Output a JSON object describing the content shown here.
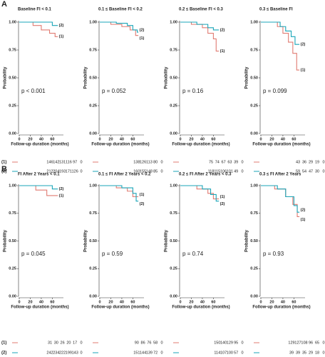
{
  "panel_labels": [
    "A",
    "B"
  ],
  "chart_data": [
    {
      "type": "step",
      "title": "Baseline FI < 0.1",
      "annotation": "p < 0.001",
      "ylabel": "Probability",
      "xlabel": "Follow-up duration (months)",
      "xlim": [
        0,
        75
      ],
      "ylim": [
        0,
        1
      ],
      "xticks": [
        0,
        20,
        40,
        60
      ],
      "yticks": [
        {
          "value": 0,
          "label": "0.00"
        },
        {
          "value": 0.25,
          "label": "0.25"
        },
        {
          "value": 0.5,
          "label": "0.50"
        },
        {
          "value": 0.75,
          "label": "0.75"
        },
        {
          "value": 1,
          "label": "1.00"
        }
      ],
      "series": [
        {
          "name": "(1)",
          "color": "#e07b72",
          "x": [
            0,
            25,
            25,
            40,
            40,
            55,
            55,
            65,
            65,
            70
          ],
          "values": [
            1,
            1,
            0.97,
            0.97,
            0.93,
            0.93,
            0.9,
            0.9,
            0.87,
            0.87
          ],
          "at_risk": [
            146,
            142,
            131,
            116,
            97,
            0
          ]
        },
        {
          "name": "(2)",
          "color": "#1aa5b8",
          "x": [
            0,
            60,
            60,
            70
          ],
          "values": [
            1,
            1,
            0.97,
            0.97
          ],
          "at_risk": [
            212,
            204,
            193,
            171,
            126,
            0
          ]
        }
      ]
    },
    {
      "type": "step",
      "title": "0.1 ≤ Baseline FI < 0.2",
      "annotation": "p = 0.052",
      "ylabel": "Probability",
      "xlabel": "Follow-up duration (months)",
      "xlim": [
        0,
        75
      ],
      "ylim": [
        0,
        1
      ],
      "xticks": [
        0,
        20,
        40,
        60
      ],
      "yticks": [
        {
          "value": 0,
          "label": "0.00"
        },
        {
          "value": 0.25,
          "label": "0.25"
        },
        {
          "value": 0.5,
          "label": "0.50"
        },
        {
          "value": 0.75,
          "label": "0.75"
        },
        {
          "value": 1,
          "label": "1.00"
        }
      ],
      "series": [
        {
          "name": "(1)",
          "color": "#e07b72",
          "x": [
            0,
            20,
            20,
            40,
            40,
            55,
            55,
            65,
            65,
            70
          ],
          "values": [
            1,
            1,
            0.98,
            0.98,
            0.96,
            0.96,
            0.93,
            0.93,
            0.88,
            0.88
          ],
          "at_risk": [
            138,
            126,
            113,
            80,
            0
          ]
        },
        {
          "name": "(2)",
          "color": "#1aa5b8",
          "x": [
            0,
            30,
            30,
            50,
            50,
            60,
            60,
            68,
            68,
            70
          ],
          "values": [
            1,
            1,
            0.99,
            0.99,
            0.97,
            0.97,
            0.93,
            0.93,
            0.91,
            0.91
          ],
          "at_risk": [
            160,
            155,
            148,
            85,
            0
          ]
        }
      ]
    },
    {
      "type": "step",
      "title": "0.2 ≤ Baseline FI < 0.3",
      "annotation": "p = 0.16",
      "ylabel": "Probability",
      "xlabel": "Follow-up duration (months)",
      "xlim": [
        0,
        75
      ],
      "ylim": [
        0,
        1
      ],
      "xticks": [
        0,
        20,
        40,
        60
      ],
      "yticks": [
        {
          "value": 0,
          "label": "0.00"
        },
        {
          "value": 0.25,
          "label": "0.25"
        },
        {
          "value": 0.5,
          "label": "0.50"
        },
        {
          "value": 0.75,
          "label": "0.75"
        },
        {
          "value": 1,
          "label": "1.00"
        }
      ],
      "series": [
        {
          "name": "(1)",
          "color": "#e07b72",
          "x": [
            0,
            20,
            20,
            40,
            40,
            50,
            50,
            60,
            60,
            65,
            65,
            70
          ],
          "values": [
            1,
            1,
            0.98,
            0.98,
            0.95,
            0.95,
            0.9,
            0.9,
            0.85,
            0.85,
            0.74,
            0.74
          ],
          "at_risk": [
            75,
            74,
            67,
            63,
            39,
            0
          ]
        },
        {
          "name": "(2)",
          "color": "#1aa5b8",
          "x": [
            0,
            30,
            30,
            50,
            50,
            60,
            60,
            70
          ],
          "values": [
            1,
            1,
            0.98,
            0.98,
            0.95,
            0.95,
            0.93,
            0.93
          ],
          "at_risk": [
            118,
            115,
            106,
            101,
            49,
            0
          ]
        }
      ]
    },
    {
      "type": "step",
      "title": "0.3 ≤ Baseline FI",
      "annotation": "p = 0.099",
      "ylabel": "Probability",
      "xlabel": "Follow-up duration (months)",
      "xlim": [
        0,
        75
      ],
      "ylim": [
        0,
        1
      ],
      "xticks": [
        0,
        20,
        40,
        60
      ],
      "yticks": [
        {
          "value": 0,
          "label": "0.00"
        },
        {
          "value": 0.25,
          "label": "0.25"
        },
        {
          "value": 0.5,
          "label": "0.50"
        },
        {
          "value": 0.75,
          "label": "0.75"
        },
        {
          "value": 1,
          "label": "1.00"
        }
      ],
      "series": [
        {
          "name": "(1)",
          "color": "#e07b72",
          "x": [
            0,
            30,
            30,
            40,
            40,
            50,
            50,
            58,
            58,
            65,
            65,
            70
          ],
          "values": [
            1,
            1,
            0.96,
            0.96,
            0.9,
            0.9,
            0.82,
            0.82,
            0.72,
            0.72,
            0.57,
            0.57
          ],
          "at_risk": [
            43,
            36,
            29,
            19,
            0
          ]
        },
        {
          "name": "(2)",
          "color": "#1aa5b8",
          "x": [
            0,
            35,
            35,
            45,
            45,
            55,
            55,
            62,
            62,
            70
          ],
          "values": [
            1,
            1,
            0.96,
            0.96,
            0.92,
            0.92,
            0.87,
            0.87,
            0.8,
            0.8
          ],
          "at_risk": [
            59,
            54,
            47,
            30,
            0
          ]
        }
      ]
    },
    {
      "type": "step",
      "title": "FI After 2 Years < 0.1",
      "annotation": "p = 0.045",
      "ylabel": "Probability",
      "xlabel": "Follow-up duration (months)",
      "xlim": [
        0,
        75
      ],
      "ylim": [
        0,
        1
      ],
      "xticks": [
        0,
        20,
        40,
        60
      ],
      "yticks": [
        {
          "value": 0,
          "label": "0.00"
        },
        {
          "value": 0.25,
          "label": "0.25"
        },
        {
          "value": 0.5,
          "label": "0.50"
        },
        {
          "value": 0.75,
          "label": "0.75"
        },
        {
          "value": 1,
          "label": "1.00"
        }
      ],
      "series": [
        {
          "name": "(1)",
          "color": "#e07b72",
          "x": [
            0,
            30,
            30,
            50,
            50,
            70
          ],
          "values": [
            1,
            1,
            0.96,
            0.96,
            0.91,
            0.91
          ],
          "at_risk": [
            31,
            30,
            26,
            20,
            17,
            0
          ]
        },
        {
          "name": "(2)",
          "color": "#1aa5b8",
          "x": [
            0,
            60,
            60,
            70
          ],
          "values": [
            1,
            1,
            0.97,
            0.97
          ],
          "at_risk": [
            242,
            234,
            222,
            199,
            143,
            0
          ]
        }
      ]
    },
    {
      "type": "step",
      "title": "0.1 ≤ FI After 2 Years < 0.2",
      "annotation": "p = 0.59",
      "ylabel": "Probability",
      "xlabel": "Follow-up duration (months)",
      "xlim": [
        0,
        75
      ],
      "ylim": [
        0,
        1
      ],
      "xticks": [
        0,
        20,
        40,
        60
      ],
      "yticks": [
        {
          "value": 0,
          "label": "0.00"
        },
        {
          "value": 0.25,
          "label": "0.25"
        },
        {
          "value": 0.5,
          "label": "0.50"
        },
        {
          "value": 0.75,
          "label": "0.75"
        },
        {
          "value": 1,
          "label": "1.00"
        }
      ],
      "series": [
        {
          "name": "(1)",
          "color": "#e07b72",
          "x": [
            0,
            30,
            30,
            50,
            50,
            60,
            60,
            70
          ],
          "values": [
            1,
            1,
            0.98,
            0.98,
            0.95,
            0.95,
            0.9,
            0.9
          ],
          "at_risk": [
            90,
            86,
            76,
            58,
            0
          ]
        },
        {
          "name": "(2)",
          "color": "#1aa5b8",
          "x": [
            0,
            40,
            40,
            60,
            60,
            66,
            66,
            70
          ],
          "values": [
            1,
            1,
            0.98,
            0.98,
            0.93,
            0.93,
            0.86,
            0.86
          ],
          "at_risk": [
            151,
            144,
            139,
            72,
            0
          ]
        }
      ]
    },
    {
      "type": "step",
      "title": "0.2 ≤ FI After 2 Years < 0.3",
      "annotation": "p = 0.74",
      "ylabel": "Probability",
      "xlabel": "Follow-up duration (months)",
      "xlim": [
        0,
        75
      ],
      "ylim": [
        0,
        1
      ],
      "xticks": [
        0,
        20,
        40,
        60
      ],
      "yticks": [
        {
          "value": 0,
          "label": "0.00"
        },
        {
          "value": 0.25,
          "label": "0.25"
        },
        {
          "value": 0.5,
          "label": "0.50"
        },
        {
          "value": 0.75,
          "label": "0.75"
        },
        {
          "value": 1,
          "label": "1.00"
        }
      ],
      "series": [
        {
          "name": "(1)",
          "color": "#e07b72",
          "x": [
            0,
            30,
            30,
            50,
            50,
            60,
            60,
            70
          ],
          "values": [
            1,
            1,
            0.97,
            0.97,
            0.93,
            0.93,
            0.88,
            0.88
          ],
          "at_risk": [
            150,
            140,
            129,
            95,
            0
          ]
        },
        {
          "name": "(2)",
          "color": "#1aa5b8",
          "x": [
            0,
            40,
            40,
            55,
            55,
            65,
            65,
            70
          ],
          "values": [
            1,
            1,
            0.97,
            0.97,
            0.92,
            0.92,
            0.86,
            0.86
          ],
          "at_risk": [
            114,
            107,
            100,
            57,
            0
          ]
        }
      ]
    },
    {
      "type": "step",
      "title": "0.3 ≤ FI After 2 Years",
      "annotation": "p = 0.93",
      "ylabel": "Probability",
      "xlabel": "Follow-up duration (months)",
      "xlim": [
        0,
        75
      ],
      "ylim": [
        0,
        1
      ],
      "xticks": [
        0,
        20,
        40,
        60
      ],
      "yticks": [
        {
          "value": 0,
          "label": "0.00"
        },
        {
          "value": 0.25,
          "label": "0.25"
        },
        {
          "value": 0.5,
          "label": "0.50"
        },
        {
          "value": 0.75,
          "label": "0.75"
        },
        {
          "value": 1,
          "label": "1.00"
        }
      ],
      "series": [
        {
          "name": "(1)",
          "color": "#e07b72",
          "x": [
            0,
            25,
            25,
            45,
            45,
            58,
            58,
            66,
            66,
            70
          ],
          "values": [
            1,
            1,
            0.97,
            0.97,
            0.9,
            0.9,
            0.83,
            0.83,
            0.72,
            0.72
          ],
          "at_risk": [
            129,
            127,
            108,
            96,
            65,
            0
          ]
        },
        {
          "name": "(2)",
          "color": "#1aa5b8",
          "x": [
            0,
            30,
            30,
            45,
            45,
            60,
            60,
            66,
            66,
            70
          ],
          "values": [
            1,
            1,
            0.97,
            0.97,
            0.9,
            0.9,
            0.82,
            0.82,
            0.76,
            0.76
          ],
          "at_risk": [
            39,
            39,
            35,
            29,
            18,
            0
          ]
        }
      ]
    }
  ]
}
